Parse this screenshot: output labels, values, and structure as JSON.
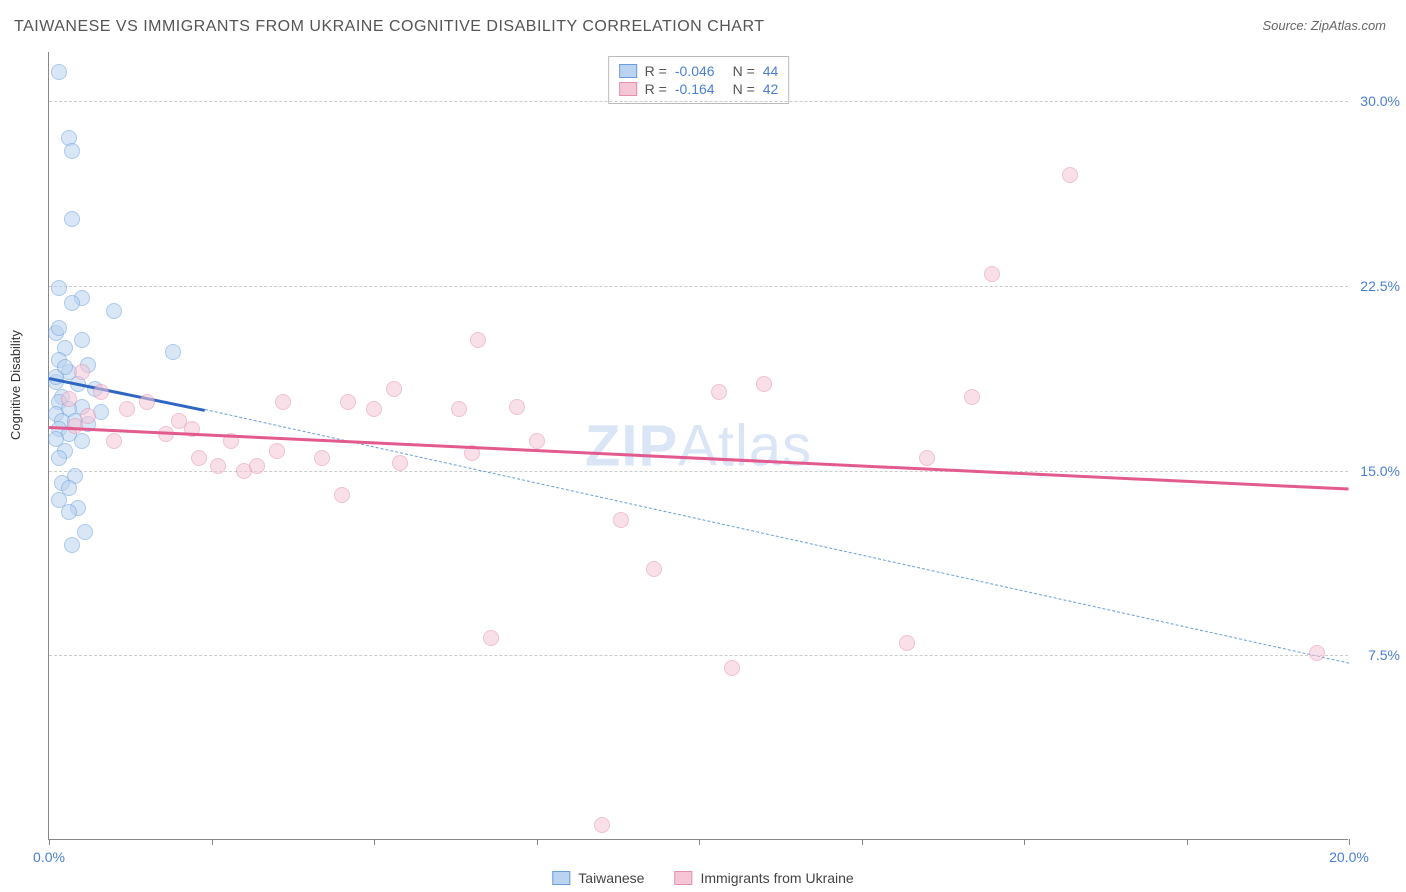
{
  "title": "TAIWANESE VS IMMIGRANTS FROM UKRAINE COGNITIVE DISABILITY CORRELATION CHART",
  "source": "Source: ZipAtlas.com",
  "y_axis_label": "Cognitive Disability",
  "watermark": {
    "bold": "ZIP",
    "rest": "Atlas"
  },
  "chart": {
    "type": "scatter",
    "xlim": [
      0,
      20
    ],
    "ylim": [
      0,
      32
    ],
    "y_ticks": [
      7.5,
      15.0,
      22.5,
      30.0
    ],
    "y_tick_labels": [
      "7.5%",
      "15.0%",
      "22.5%",
      "30.0%"
    ],
    "x_ticks": [
      0,
      2.5,
      5,
      7.5,
      10,
      12.5,
      15,
      17.5,
      20
    ],
    "x_tick_labels": {
      "0": "0.0%",
      "20": "20.0%"
    },
    "background_color": "#ffffff",
    "grid_color": "#cccccc",
    "axis_color": "#888888",
    "tick_label_color": "#4a7fd4",
    "marker_radius": 8,
    "series": [
      {
        "name": "Taiwanese",
        "fill": "#b9d3f0",
        "stroke": "#6a9edb",
        "fill_opacity": 0.55,
        "r_value": "-0.046",
        "n_value": "44",
        "trend": {
          "x1": 0,
          "y1": 18.8,
          "x2": 2.4,
          "y2": 17.5,
          "color": "#2f66c4",
          "width": 3
        },
        "extrapolation": {
          "x1": 2.4,
          "y1": 17.5,
          "x2": 20,
          "y2": 7.2,
          "color": "#6a9edb",
          "dash": true
        },
        "points": [
          [
            0.15,
            31.2
          ],
          [
            0.3,
            28.5
          ],
          [
            0.35,
            28.0
          ],
          [
            0.35,
            25.2
          ],
          [
            0.15,
            22.4
          ],
          [
            0.5,
            22.0
          ],
          [
            0.35,
            21.8
          ],
          [
            1.0,
            21.5
          ],
          [
            0.1,
            20.6
          ],
          [
            0.5,
            20.3
          ],
          [
            0.25,
            20.0
          ],
          [
            1.9,
            19.8
          ],
          [
            0.15,
            19.5
          ],
          [
            0.6,
            19.3
          ],
          [
            0.3,
            19.0
          ],
          [
            0.1,
            18.6
          ],
          [
            0.45,
            18.5
          ],
          [
            0.2,
            18.0
          ],
          [
            0.7,
            18.3
          ],
          [
            0.15,
            17.8
          ],
          [
            0.5,
            17.6
          ],
          [
            0.3,
            17.5
          ],
          [
            0.1,
            17.3
          ],
          [
            0.8,
            17.4
          ],
          [
            0.2,
            17.0
          ],
          [
            0.4,
            17.0
          ],
          [
            0.6,
            16.9
          ],
          [
            0.15,
            16.7
          ],
          [
            0.3,
            16.5
          ],
          [
            0.1,
            16.3
          ],
          [
            0.5,
            16.2
          ],
          [
            0.25,
            15.8
          ],
          [
            0.15,
            15.5
          ],
          [
            0.4,
            14.8
          ],
          [
            0.2,
            14.5
          ],
          [
            0.3,
            14.3
          ],
          [
            0.15,
            13.8
          ],
          [
            0.45,
            13.5
          ],
          [
            0.3,
            13.3
          ],
          [
            0.55,
            12.5
          ],
          [
            0.35,
            12.0
          ],
          [
            0.1,
            18.8
          ],
          [
            0.25,
            19.2
          ],
          [
            0.15,
            20.8
          ]
        ]
      },
      {
        "name": "Immigrants from Ukraine",
        "fill": "#f5c6d6",
        "stroke": "#e58fb0",
        "fill_opacity": 0.55,
        "r_value": "-0.164",
        "n_value": "42",
        "trend": {
          "x1": 0,
          "y1": 16.8,
          "x2": 20,
          "y2": 14.3,
          "color": "#e35a8f",
          "width": 2.5
        },
        "points": [
          [
            0.5,
            19.0
          ],
          [
            0.8,
            18.2
          ],
          [
            0.3,
            17.9
          ],
          [
            1.2,
            17.5
          ],
          [
            0.6,
            17.2
          ],
          [
            1.5,
            17.8
          ],
          [
            0.4,
            16.8
          ],
          [
            1.8,
            16.5
          ],
          [
            2.2,
            16.7
          ],
          [
            1.0,
            16.2
          ],
          [
            2.0,
            17.0
          ],
          [
            2.6,
            15.2
          ],
          [
            2.3,
            15.5
          ],
          [
            3.0,
            15.0
          ],
          [
            2.8,
            16.2
          ],
          [
            3.5,
            15.8
          ],
          [
            3.2,
            15.2
          ],
          [
            3.6,
            17.8
          ],
          [
            4.2,
            15.5
          ],
          [
            4.5,
            14.0
          ],
          [
            4.6,
            17.8
          ],
          [
            5.0,
            17.5
          ],
          [
            5.3,
            18.3
          ],
          [
            5.4,
            15.3
          ],
          [
            6.3,
            17.5
          ],
          [
            6.5,
            15.7
          ],
          [
            6.6,
            20.3
          ],
          [
            7.2,
            17.6
          ],
          [
            7.5,
            16.2
          ],
          [
            8.5,
            0.6
          ],
          [
            8.8,
            13.0
          ],
          [
            9.3,
            11.0
          ],
          [
            10.3,
            18.2
          ],
          [
            10.5,
            7.0
          ],
          [
            11.0,
            18.5
          ],
          [
            13.2,
            8.0
          ],
          [
            13.5,
            15.5
          ],
          [
            14.2,
            18.0
          ],
          [
            14.5,
            23.0
          ],
          [
            15.7,
            27.0
          ],
          [
            19.5,
            7.6
          ],
          [
            6.8,
            8.2
          ]
        ]
      }
    ]
  },
  "stats_legend": {
    "r_label": "R =",
    "n_label": "N ="
  },
  "bottom_legend": [
    {
      "label": "Taiwanese",
      "fill": "#b9d3f0",
      "stroke": "#6a9edb"
    },
    {
      "label": "Immigrants from Ukraine",
      "fill": "#f5c6d6",
      "stroke": "#e58fb0"
    }
  ]
}
